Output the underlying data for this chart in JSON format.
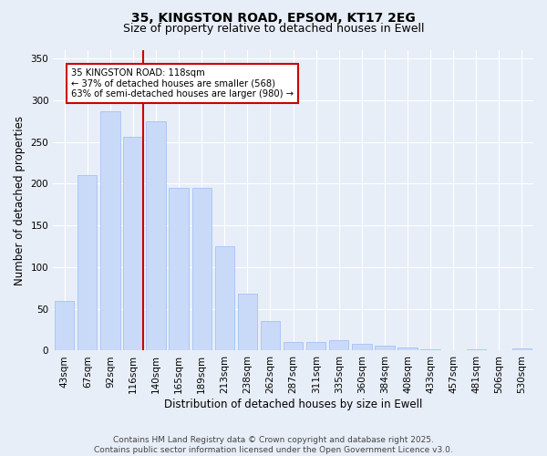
{
  "title_line1": "35, KINGSTON ROAD, EPSOM, KT17 2EG",
  "title_line2": "Size of property relative to detached houses in Ewell",
  "xlabel": "Distribution of detached houses by size in Ewell",
  "ylabel": "Number of detached properties",
  "bar_labels": [
    "43sqm",
    "67sqm",
    "92sqm",
    "116sqm",
    "140sqm",
    "165sqm",
    "189sqm",
    "213sqm",
    "238sqm",
    "262sqm",
    "287sqm",
    "311sqm",
    "335sqm",
    "360sqm",
    "384sqm",
    "408sqm",
    "433sqm",
    "457sqm",
    "481sqm",
    "506sqm",
    "530sqm"
  ],
  "bar_values": [
    60,
    210,
    287,
    256,
    275,
    195,
    195,
    125,
    68,
    35,
    10,
    10,
    13,
    8,
    6,
    4,
    2,
    0,
    2,
    0,
    3
  ],
  "bar_color": "#c9daf8",
  "bar_edgecolor": "#a4c2f4",
  "annotation_text": "35 KINGSTON ROAD: 118sqm\n← 37% of detached houses are smaller (568)\n63% of semi-detached houses are larger (980) →",
  "annotation_box_facecolor": "#ffffff",
  "annotation_box_edgecolor": "#cc0000",
  "vline_color": "#cc0000",
  "vline_x": 3.42,
  "ylim": [
    0,
    360
  ],
  "yticks": [
    0,
    50,
    100,
    150,
    200,
    250,
    300,
    350
  ],
  "background_color": "#e8eef8",
  "axes_background": "#e8eef8",
  "grid_color": "#ffffff",
  "footer_text": "Contains HM Land Registry data © Crown copyright and database right 2025.\nContains public sector information licensed under the Open Government Licence v3.0.",
  "title_fontsize": 10,
  "subtitle_fontsize": 9,
  "label_fontsize": 8.5,
  "tick_fontsize": 7.5,
  "footer_fontsize": 6.5
}
